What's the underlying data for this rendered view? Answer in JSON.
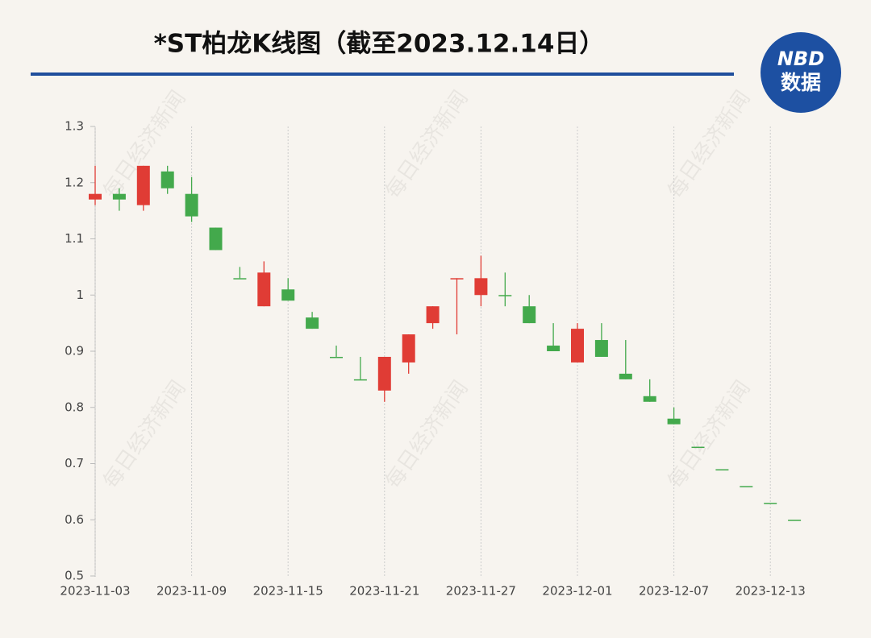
{
  "chart_data": {
    "type": "candlestick",
    "title": "*ST柏龙K线图（截至2023.12.14日）",
    "logo": {
      "top": "NBD",
      "bottom": "数据"
    },
    "watermark": "每日经济新闻",
    "categories": [
      "2023-11-03",
      null,
      null,
      null,
      "2023-11-09",
      null,
      null,
      null,
      "2023-11-15",
      null,
      null,
      null,
      "2023-11-21",
      null,
      null,
      null,
      "2023-11-27",
      null,
      null,
      null,
      "2023-12-01",
      null,
      null,
      null,
      "2023-12-07",
      null,
      null,
      null,
      "2023-12-13",
      null
    ],
    "series": [
      {
        "name": "open",
        "values": [
          1.17,
          1.18,
          1.16,
          1.22,
          1.18,
          1.12,
          1.03,
          0.98,
          1.01,
          0.96,
          0.89,
          0.85,
          0.83,
          0.88,
          0.95,
          1.03,
          1.0,
          1.0,
          0.98,
          0.91,
          0.88,
          0.92,
          0.86,
          0.82,
          0.78,
          0.73,
          0.69,
          0.66,
          0.63,
          0.6
        ]
      },
      {
        "name": "high",
        "values": [
          1.23,
          1.19,
          1.23,
          1.23,
          1.21,
          1.12,
          1.05,
          1.06,
          1.03,
          0.97,
          0.91,
          0.89,
          0.89,
          0.93,
          0.98,
          1.03,
          1.07,
          1.04,
          1.0,
          0.95,
          0.95,
          0.95,
          0.92,
          0.85,
          0.8,
          0.73,
          0.69,
          0.66,
          0.63,
          0.6
        ]
      },
      {
        "name": "low",
        "values": [
          1.16,
          1.15,
          1.15,
          1.18,
          1.13,
          1.08,
          1.03,
          0.98,
          0.99,
          0.94,
          0.89,
          0.85,
          0.81,
          0.86,
          0.94,
          0.93,
          0.98,
          0.98,
          0.95,
          0.9,
          0.88,
          0.89,
          0.85,
          0.81,
          0.77,
          0.73,
          0.69,
          0.66,
          0.63,
          0.6
        ]
      },
      {
        "name": "close",
        "values": [
          1.18,
          1.17,
          1.23,
          1.19,
          1.14,
          1.08,
          1.03,
          1.04,
          0.99,
          0.94,
          0.89,
          0.85,
          0.89,
          0.93,
          0.98,
          1.03,
          1.03,
          1.0,
          0.95,
          0.9,
          0.94,
          0.89,
          0.85,
          0.81,
          0.77,
          0.73,
          0.69,
          0.66,
          0.63,
          0.6
        ]
      }
    ],
    "up_color": "#e03c35",
    "down_color": "#43a94c",
    "ylim": [
      0.5,
      1.3
    ],
    "yticks": [
      0.5,
      0.6,
      0.7,
      0.8,
      0.9,
      1,
      1.1,
      1.2,
      1.3
    ],
    "grid": true
  }
}
